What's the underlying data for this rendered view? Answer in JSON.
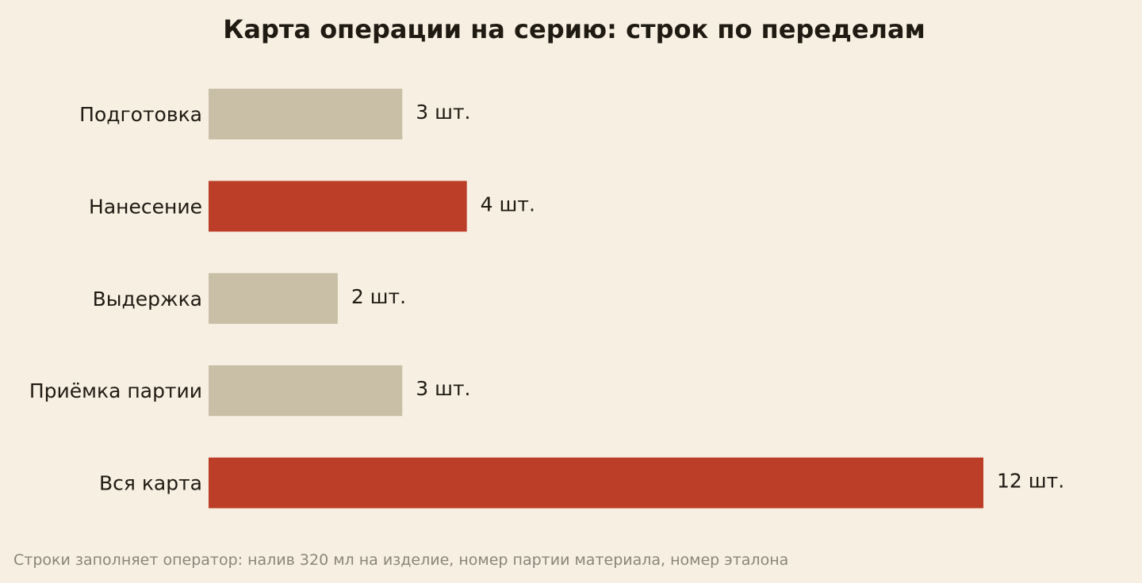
{
  "chart_data": {
    "type": "bar",
    "orientation": "horizontal",
    "title": "Карта операции на серию: строк по переделам",
    "categories": [
      "Подготовка",
      "Нанесение",
      "Выдержка",
      "Приёмка партии",
      "Вся карта"
    ],
    "values": [
      3,
      4,
      2,
      3,
      12
    ],
    "value_labels": [
      "3 шт.",
      "4 шт.",
      "2 шт.",
      "3 шт.",
      "12 шт."
    ],
    "unit": "шт.",
    "highlighted": [
      false,
      true,
      false,
      false,
      true
    ],
    "xlim": [
      0,
      12
    ],
    "grid": false,
    "legend": "none"
  },
  "colors": {
    "background": "#f6efe2",
    "bar_default": "#c9bfa6",
    "bar_highlight": "#bd3e28",
    "text": "#1f1a12",
    "footnote": "#8b857a"
  },
  "footnote": "Строки заполняет оператор: налив 320 мл на изделие, номер партии материала, номер эталона"
}
